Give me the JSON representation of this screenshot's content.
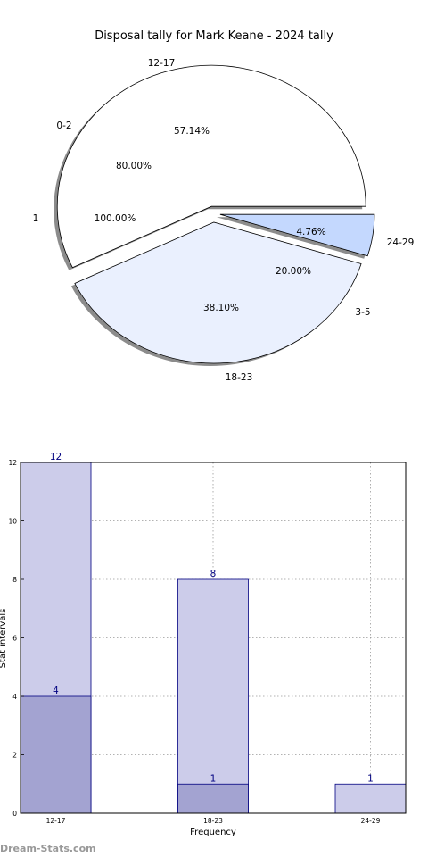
{
  "watermark": "Dream-Stats.com",
  "colors": {
    "bar_total": "#ccccea",
    "bar_sub": "#a3a3d1",
    "bar_edge": "#000080",
    "pie_edge": "#000000"
  },
  "chart_data": [
    {
      "type": "pie",
      "title": "Disposal tally for Mark Keane - 2024 tally",
      "slices": [
        {
          "category": "12-17",
          "percent_label": "57.14%",
          "percent": 57.14,
          "color": "#ffffff"
        },
        {
          "category": "18-23",
          "percent_label": "38.10%",
          "percent": 38.1,
          "color": "#eaf0fe"
        },
        {
          "category": "24-29",
          "percent_label": "4.76%",
          "percent": 4.76,
          "color": "#c4d8fe"
        }
      ],
      "inner_labels": [
        {
          "category": "0-2",
          "percent_label": "80.00%"
        },
        {
          "category": "1",
          "percent_label": "100.00%"
        },
        {
          "category": "3-5",
          "percent_label": "20.00%"
        }
      ],
      "shadow": true,
      "exploded": true
    },
    {
      "type": "bar",
      "xlabel": "Frequency",
      "ylabel": "Stat intervals",
      "categories": [
        "12-17",
        "18-23",
        "24-29"
      ],
      "series": [
        {
          "values": [
            12,
            8,
            1
          ],
          "labels": [
            "12",
            "8",
            "1"
          ]
        },
        {
          "values": [
            4,
            1,
            0
          ],
          "labels": [
            "4",
            "1",
            ""
          ]
        }
      ],
      "ylim": [
        0,
        12
      ],
      "yticks": [
        "0",
        "2",
        "4",
        "6",
        "8",
        "10",
        "12"
      ],
      "grid": true
    }
  ]
}
